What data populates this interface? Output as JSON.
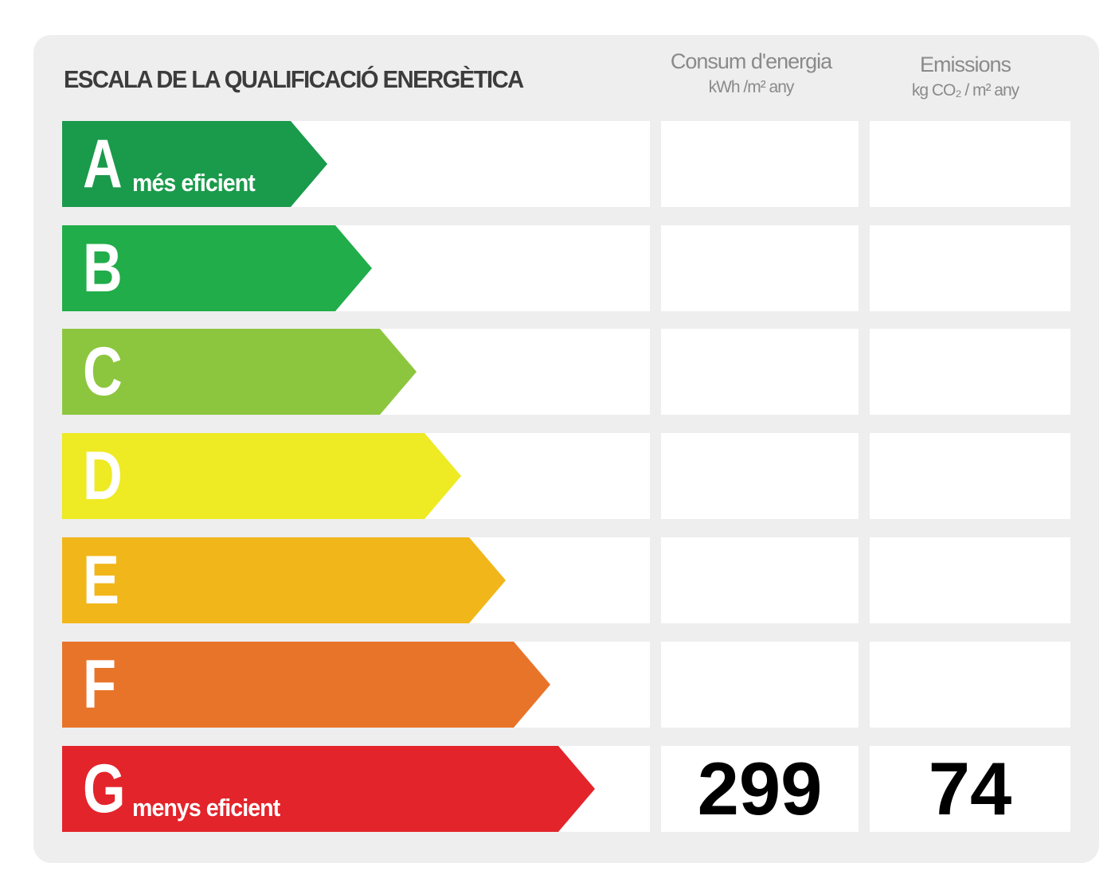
{
  "title": "ESCALA DE LA QUALIFICACIÓ ENERGÈTICA",
  "columns": {
    "consum": {
      "line1": "Consum d'energia",
      "line2": "kWh /m² any"
    },
    "emissions": {
      "line1": "Emissions",
      "line2": "kg CO₂ / m² any"
    }
  },
  "ratings": [
    {
      "letter": "A",
      "sublabel": "més eficient",
      "color": "#1a9a4b"
    },
    {
      "letter": "B",
      "sublabel": "",
      "color": "#20ad4a"
    },
    {
      "letter": "C",
      "sublabel": "",
      "color": "#8cc63f"
    },
    {
      "letter": "D",
      "sublabel": "",
      "color": "#eeea23"
    },
    {
      "letter": "E",
      "sublabel": "",
      "color": "#f1b619"
    },
    {
      "letter": "F",
      "sublabel": "",
      "color": "#e8742a"
    },
    {
      "letter": "G",
      "sublabel": "menys eficient",
      "color": "#e3242b"
    }
  ],
  "result": {
    "rating": "G",
    "consum_value": "299",
    "emissions_value": "74"
  }
}
